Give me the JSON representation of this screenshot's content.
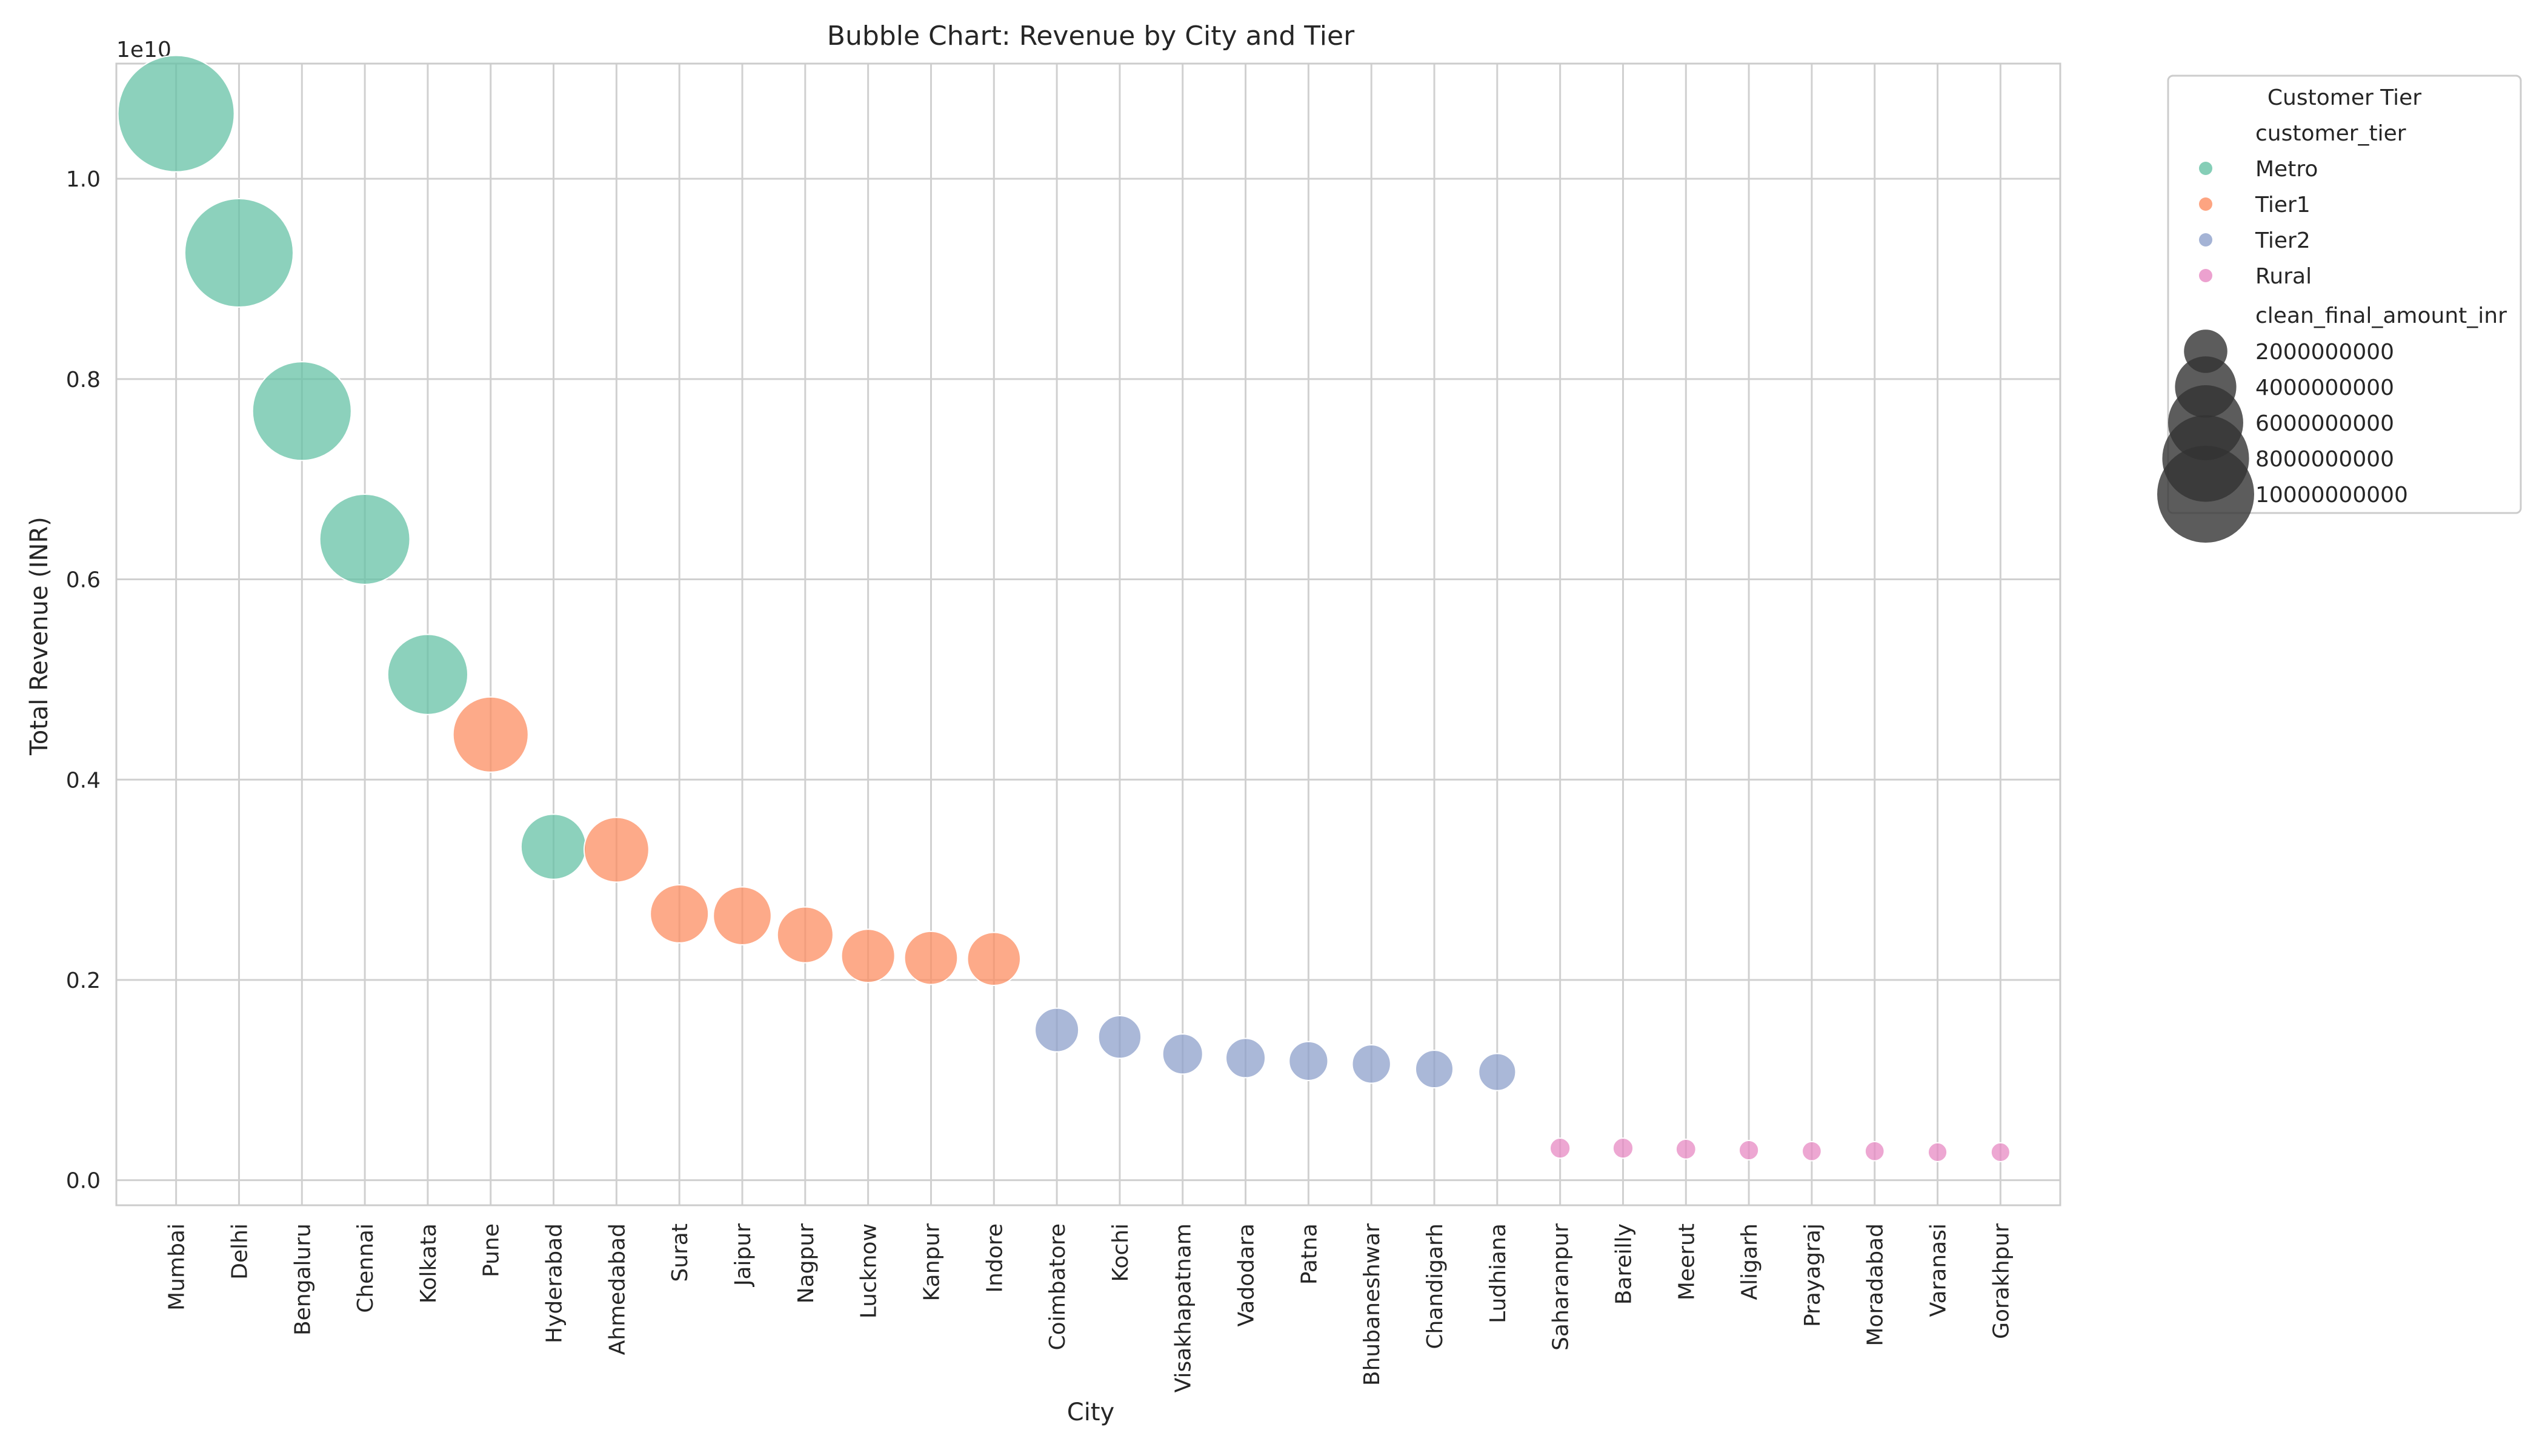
{
  "chart_data": {
    "type": "scatter",
    "title": "Bubble Chart: Revenue by City and Tier",
    "xlabel": "City",
    "ylabel": "Total Revenue (INR)",
    "y_offset_label": "1e10",
    "ylim": [
      -0.025,
      1.115
    ],
    "ytick_values": [
      0.0,
      0.2,
      0.4,
      0.6,
      0.8,
      1.0
    ],
    "ytick_labels": [
      "0.0",
      "0.2",
      "0.4",
      "0.6",
      "0.8",
      "1.0"
    ],
    "grid": true,
    "legend_position": "outside right",
    "categories": [
      "Mumbai",
      "Delhi",
      "Bengaluru",
      "Chennai",
      "Kolkata",
      "Pune",
      "Hyderabad",
      "Ahmedabad",
      "Surat",
      "Jaipur",
      "Nagpur",
      "Lucknow",
      "Kanpur",
      "Indore",
      "Coimbatore",
      "Kochi",
      "Visakhapatnam",
      "Vadodara",
      "Patna",
      "Bhubaneshwar",
      "Chandigarh",
      "Ludhiana",
      "Saharanpur",
      "Bareilly",
      "Meerut",
      "Aligarh",
      "Prayagraj",
      "Moradabad",
      "Varanasi",
      "Gorakhpur"
    ],
    "values": [
      1.065,
      0.926,
      0.768,
      0.64,
      0.505,
      0.445,
      0.333,
      0.33,
      0.266,
      0.264,
      0.245,
      0.224,
      0.222,
      0.221,
      0.15,
      0.143,
      0.126,
      0.122,
      0.119,
      0.116,
      0.111,
      0.108,
      0.032,
      0.032,
      0.031,
      0.03,
      0.029,
      0.029,
      0.028,
      0.028
    ],
    "tiers": [
      "Metro",
      "Metro",
      "Metro",
      "Metro",
      "Metro",
      "Tier1",
      "Metro",
      "Tier1",
      "Tier1",
      "Tier1",
      "Tier1",
      "Tier1",
      "Tier1",
      "Tier1",
      "Tier2",
      "Tier2",
      "Tier2",
      "Tier2",
      "Tier2",
      "Tier2",
      "Tier2",
      "Tier2",
      "Rural",
      "Rural",
      "Rural",
      "Rural",
      "Rural",
      "Rural",
      "Rural",
      "Rural"
    ],
    "legend": {
      "title": "Customer Tier",
      "hue_title": "customer_tier",
      "hue_entries": [
        {
          "label": "Metro",
          "color": "#66c2a5"
        },
        {
          "label": "Tier1",
          "color": "#fc8d62"
        },
        {
          "label": "Tier2",
          "color": "#8da0cb"
        },
        {
          "label": "Rural",
          "color": "#e78ac3"
        }
      ],
      "size_title": "clean_final_amount_inr",
      "size_entries": [
        {
          "label": "2000000000",
          "value": 0.2
        },
        {
          "label": "4000000000",
          "value": 0.4
        },
        {
          "label": "6000000000",
          "value": 0.6
        },
        {
          "label": "8000000000",
          "value": 0.8
        },
        {
          "label": "10000000000",
          "value": 1.0
        }
      ]
    }
  }
}
